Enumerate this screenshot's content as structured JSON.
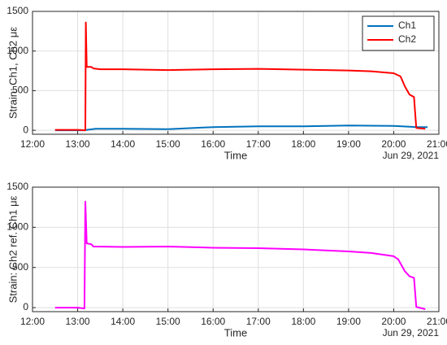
{
  "chart_data": [
    {
      "type": "line",
      "xlabel": "Time",
      "xlabel_date": "Jun 29, 2021",
      "ylabel": "Strain: Ch1, Ch2 με",
      "xlim": [
        12,
        21
      ],
      "ylim": [
        -50,
        1500
      ],
      "xticks": [
        {
          "value": 12,
          "label": "12:00"
        },
        {
          "value": 13,
          "label": "13:00"
        },
        {
          "value": 14,
          "label": "14:00"
        },
        {
          "value": 15,
          "label": "15:00"
        },
        {
          "value": 16,
          "label": "16:00"
        },
        {
          "value": 17,
          "label": "17:00"
        },
        {
          "value": 18,
          "label": "18:00"
        },
        {
          "value": 19,
          "label": "19:00"
        },
        {
          "value": 20,
          "label": "20:00"
        },
        {
          "value": 21,
          "label": "21:00"
        }
      ],
      "yticks": [
        0,
        500,
        1000,
        1500
      ],
      "grid": true,
      "legend": "upper-right",
      "series": [
        {
          "name": "Ch1",
          "color": "#0072bd",
          "x": [
            12.5,
            13.15,
            13.2,
            13.4,
            14,
            15,
            16,
            17,
            18,
            19,
            20,
            20.5,
            20.75
          ],
          "values": [
            0,
            0,
            5,
            20,
            20,
            15,
            40,
            50,
            50,
            60,
            55,
            40,
            40
          ]
        },
        {
          "name": "Ch2",
          "color": "#ff0000",
          "x": [
            12.5,
            13.0,
            13.17,
            13.18,
            13.2,
            13.3,
            13.35,
            13.5,
            14,
            15,
            16,
            17,
            18,
            19,
            19.5,
            20,
            20.15,
            20.25,
            20.35,
            20.45,
            20.5,
            20.7
          ],
          "values": [
            5,
            5,
            0,
            1360,
            800,
            800,
            780,
            770,
            770,
            760,
            770,
            775,
            765,
            755,
            745,
            720,
            680,
            550,
            450,
            420,
            30,
            20
          ]
        }
      ]
    },
    {
      "type": "line",
      "xlabel": "Time",
      "xlabel_date": "Jun 29, 2021",
      "ylabel": "Strain: Ch2 ref. Ch1 με",
      "xlim": [
        12,
        21
      ],
      "ylim": [
        -50,
        1500
      ],
      "xticks": [
        {
          "value": 12,
          "label": "12:00"
        },
        {
          "value": 13,
          "label": "13:00"
        },
        {
          "value": 14,
          "label": "14:00"
        },
        {
          "value": 15,
          "label": "15:00"
        },
        {
          "value": 16,
          "label": "16:00"
        },
        {
          "value": 17,
          "label": "17:00"
        },
        {
          "value": 18,
          "label": "18:00"
        },
        {
          "value": 19,
          "label": "19:00"
        },
        {
          "value": 20,
          "label": "20:00"
        },
        {
          "value": 21,
          "label": "21:00"
        }
      ],
      "yticks": [
        0,
        500,
        1000,
        1500
      ],
      "grid": true,
      "series": [
        {
          "color": "#ff00ff",
          "x": [
            12.5,
            13.0,
            13.15,
            13.17,
            13.2,
            13.3,
            13.35,
            14,
            15,
            16,
            17,
            18,
            19,
            19.5,
            20,
            20.1,
            20.25,
            20.35,
            20.45,
            20.5,
            20.7
          ],
          "values": [
            0,
            0,
            -10,
            1320,
            800,
            790,
            760,
            755,
            760,
            745,
            740,
            725,
            700,
            680,
            640,
            600,
            450,
            390,
            370,
            10,
            -20
          ]
        }
      ]
    }
  ]
}
